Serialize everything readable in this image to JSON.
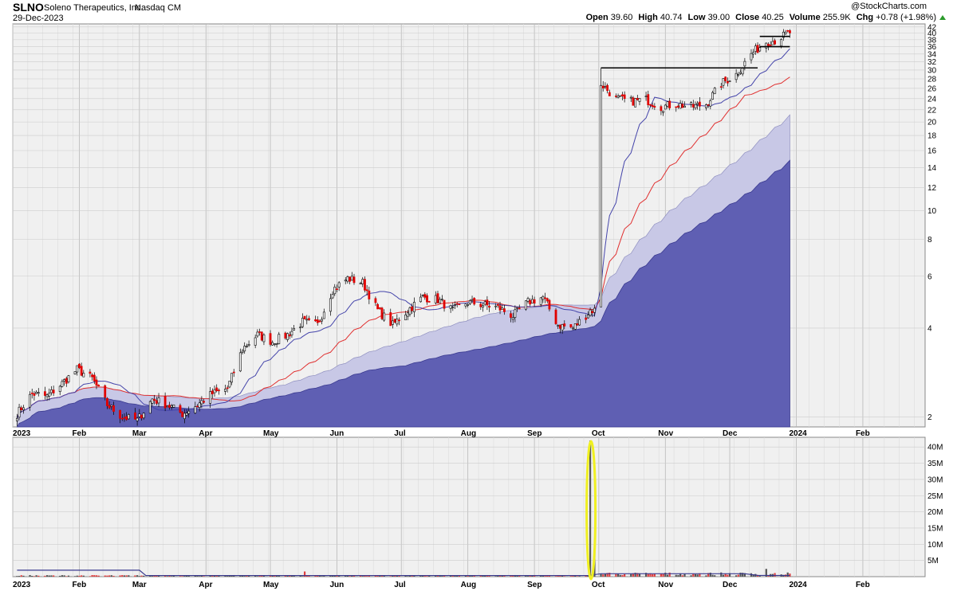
{
  "header": {
    "ticker": "SLNO",
    "company": "Soleno Therapeutics, Inc.",
    "exchange": "Nasdaq CM",
    "date": "29-Dec-2023",
    "brand": "@StockCharts.com",
    "open_label": "Open",
    "open": "39.60",
    "high_label": "High",
    "high": "40.74",
    "low_label": "Low",
    "low": "39.00",
    "close_label": "Close",
    "close": "40.25",
    "volume_label": "Volume",
    "volume": "255.9K",
    "chg_label": "Chg",
    "chg": "+0.78 (+1.98%)"
  },
  "colors": {
    "up": "#000000",
    "down": "#e00000",
    "vol_area": "#5f5fb3",
    "vol_area_light": "#c8c8e6",
    "ma_fast": "#4444aa",
    "ma_slow": "#e03030",
    "highlight": "#f0f020",
    "grid": "#cccccc",
    "bg": "#f0f0f0"
  },
  "chart_data": [
    {
      "type": "candlestick",
      "title": "",
      "y_scale": "log",
      "ylim": [
        1.85,
        43
      ],
      "y_ticks": [
        "2",
        "4",
        "6",
        "8",
        "10",
        "12",
        "14",
        "16",
        "18",
        "20",
        "22",
        "24",
        "26",
        "28",
        "30",
        "32",
        "34",
        "36",
        "38",
        "40",
        "42"
      ],
      "x_labels": [
        "2023",
        "Feb",
        "Mar",
        "Apr",
        "May",
        "Jun",
        "Jul",
        "Aug",
        "Sep",
        "Oct",
        "Nov",
        "Dec",
        "2024",
        "Feb"
      ],
      "price_path": [
        [
          "2023-01-03",
          2.05
        ],
        [
          "2023-01-10",
          2.4
        ],
        [
          "2023-01-17",
          2.35
        ],
        [
          "2023-01-24",
          2.6
        ],
        [
          "2023-01-31",
          2.9
        ],
        [
          "2023-02-07",
          2.7
        ],
        [
          "2023-02-14",
          2.2
        ],
        [
          "2023-02-21",
          2.0
        ],
        [
          "2023-02-28",
          1.95
        ],
        [
          "2023-03-07",
          2.3
        ],
        [
          "2023-03-14",
          2.2
        ],
        [
          "2023-03-21",
          2.05
        ],
        [
          "2023-03-28",
          2.2
        ],
        [
          "2023-04-04",
          2.4
        ],
        [
          "2023-04-11",
          2.5
        ],
        [
          "2023-04-18",
          3.4
        ],
        [
          "2023-04-25",
          3.8
        ],
        [
          "2023-05-02",
          3.6
        ],
        [
          "2023-05-09",
          3.8
        ],
        [
          "2023-05-16",
          4.2
        ],
        [
          "2023-05-23",
          4.1
        ],
        [
          "2023-05-30",
          5.4
        ],
        [
          "2023-06-06",
          5.9
        ],
        [
          "2023-06-13",
          5.7
        ],
        [
          "2023-06-20",
          4.6
        ],
        [
          "2023-06-27",
          4.1
        ],
        [
          "2023-07-04",
          4.6
        ],
        [
          "2023-07-11",
          5.1
        ],
        [
          "2023-07-18",
          5.0
        ],
        [
          "2023-07-25",
          4.6
        ],
        [
          "2023-08-01",
          4.9
        ],
        [
          "2023-08-08",
          4.8
        ],
        [
          "2023-08-15",
          4.7
        ],
        [
          "2023-08-22",
          4.4
        ],
        [
          "2023-08-29",
          4.9
        ],
        [
          "2023-09-05",
          5.1
        ],
        [
          "2023-09-12",
          4.1
        ],
        [
          "2023-09-19",
          4.0
        ],
        [
          "2023-09-26",
          4.5
        ],
        [
          "2023-10-02",
          27
        ],
        [
          "2023-10-09",
          24
        ],
        [
          "2023-10-16",
          23.5
        ],
        [
          "2023-10-23",
          23.8
        ],
        [
          "2023-10-30",
          22.5
        ],
        [
          "2023-11-06",
          23
        ],
        [
          "2023-11-13",
          22.5
        ],
        [
          "2023-11-20",
          23
        ],
        [
          "2023-11-27",
          27
        ],
        [
          "2023-12-04",
          29
        ],
        [
          "2023-12-11",
          34
        ],
        [
          "2023-12-18",
          37.5
        ],
        [
          "2023-12-22",
          37.8
        ],
        [
          "2023-12-29",
          40.25
        ]
      ],
      "annotations": [
        {
          "type": "hline",
          "from": "2023-10-02",
          "to": "2023-12-14",
          "price": 30.5
        },
        {
          "type": "hline",
          "from": "2023-12-15",
          "to": "2023-12-29",
          "price": 39.0
        },
        {
          "type": "hline",
          "from": "2023-12-15",
          "to": "2023-12-29",
          "price": 36.0
        }
      ]
    },
    {
      "type": "bar",
      "title": "",
      "ylim": [
        0,
        43
      ],
      "y_ticks": [
        "5M",
        "10M",
        "15M",
        "20M",
        "25M",
        "30M",
        "35M",
        "40M"
      ],
      "x_labels": [
        "2023",
        "Feb",
        "Mar",
        "Apr",
        "May",
        "Jun",
        "Jul",
        "Aug",
        "Sep",
        "Oct",
        "Nov",
        "Dec",
        "2024",
        "Feb"
      ],
      "spike": {
        "date": "2023-09-27",
        "value_millions": 42
      },
      "second_spike": {
        "date": "2023-09-29",
        "value_millions": 8.5
      }
    }
  ]
}
